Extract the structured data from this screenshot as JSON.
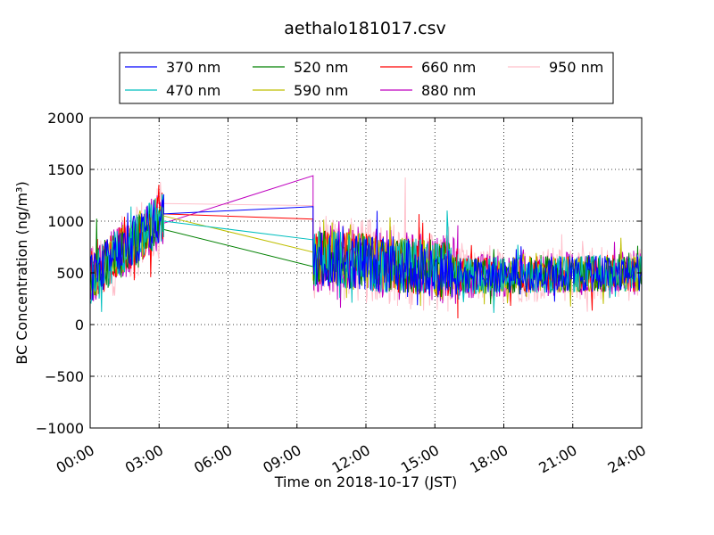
{
  "chart_data": {
    "type": "line",
    "title": "aethalo181017.csv",
    "xlabel": "Time on 2018-10-17 (JST)",
    "ylabel": "BC Concentration (ng/m³)",
    "xlim_hours": [
      0,
      24
    ],
    "ylim": [
      -1000,
      2000
    ],
    "x_ticks": [
      "00:00",
      "03:00",
      "06:00",
      "09:00",
      "12:00",
      "15:00",
      "18:00",
      "21:00",
      "24:00"
    ],
    "y_ticks": [
      "−1000",
      "−500",
      "0",
      "500",
      "1000",
      "1500",
      "2000"
    ],
    "grid": true,
    "legend_position": "top",
    "series": [
      {
        "name": "370 nm",
        "color": "#0000ff"
      },
      {
        "name": "470 nm",
        "color": "#00bfbf"
      },
      {
        "name": "520 nm",
        "color": "#008000"
      },
      {
        "name": "590 nm",
        "color": "#bfbf00"
      },
      {
        "name": "660 nm",
        "color": "#ff0000"
      },
      {
        "name": "880 nm",
        "color": "#bf00bf"
      },
      {
        "name": "950 nm",
        "color": "#ffc0cb"
      }
    ],
    "segments": [
      {
        "x_start": 0.0,
        "x_end": 3.2,
        "mean_start": 450,
        "mean_end": 1050,
        "amplitude": 250,
        "points": 90
      },
      {
        "x_start": 9.7,
        "x_end": 16.0,
        "mean_start": 650,
        "mean_end": 520,
        "amplitude": 280,
        "points": 190
      },
      {
        "x_start": 16.0,
        "x_end": 24.0,
        "mean_start": 470,
        "mean_end": 500,
        "amplitude": 180,
        "points": 230
      }
    ],
    "gap_lines": {
      "x_start": 3.2,
      "x_end": 9.7,
      "start_values": [
        1070,
        1000,
        920,
        1050,
        1070,
        980,
        1170
      ],
      "end_values": [
        1140,
        820,
        560,
        700,
        1020,
        1440,
        1150
      ]
    }
  }
}
